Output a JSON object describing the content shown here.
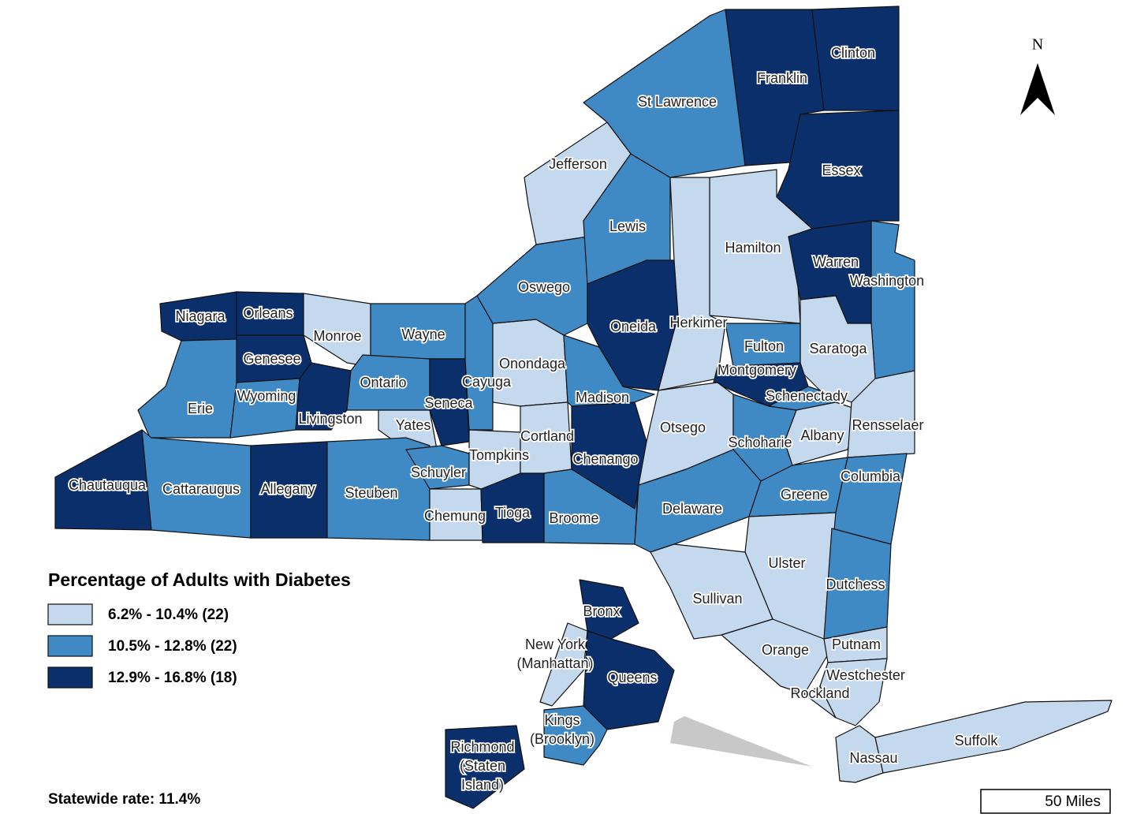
{
  "legend": {
    "title": "Percentage of Adults with Diabetes",
    "items": [
      {
        "label": "6.2% - 10.4% (22)",
        "color": "#c5d9ee"
      },
      {
        "label": "10.5% - 12.8% (22)",
        "color": "#3f8ac4"
      },
      {
        "label": "12.9% - 16.8% (18)",
        "color": "#0b2f6a"
      }
    ]
  },
  "footer": "Statewide rate: 11.4%",
  "north": "N",
  "scale_bar": "50 Miles",
  "counties": [
    {
      "label": "Niagara",
      "class": 2
    },
    {
      "label": "Orleans",
      "class": 2
    },
    {
      "label": "Monroe",
      "class": 0
    },
    {
      "label": "Wayne",
      "class": 1
    },
    {
      "label": "Genesee",
      "class": 2
    },
    {
      "label": "Erie",
      "class": 1
    },
    {
      "label": "Wyoming",
      "class": 1
    },
    {
      "label": "Livingston",
      "class": 2
    },
    {
      "label": "Ontario",
      "class": 1
    },
    {
      "label": "Seneca",
      "class": 2
    },
    {
      "label": "Cayuga",
      "class": 1
    },
    {
      "label": "Yates",
      "class": 0
    },
    {
      "label": "Chautauqua",
      "class": 2
    },
    {
      "label": "Cattaraugus",
      "class": 1
    },
    {
      "label": "Allegany",
      "class": 2
    },
    {
      "label": "Steuben",
      "class": 1
    },
    {
      "label": "Schuyler",
      "class": 1
    },
    {
      "label": "Chemung",
      "class": 0
    },
    {
      "label": "Tompkins",
      "class": 0
    },
    {
      "label": "Tioga",
      "class": 2
    },
    {
      "label": "Onondaga",
      "class": 0
    },
    {
      "label": "Cortland",
      "class": 0
    },
    {
      "label": "Broome",
      "class": 1
    },
    {
      "label": "Chenango",
      "class": 2
    },
    {
      "label": "Madison",
      "class": 1
    },
    {
      "label": "Oswego",
      "class": 1
    },
    {
      "label": "Jefferson",
      "class": 0
    },
    {
      "label": "Lewis",
      "class": 1
    },
    {
      "label": "Oneida",
      "class": 2
    },
    {
      "label": "St Lawrence",
      "class": 1
    },
    {
      "label": "Franklin",
      "class": 2
    },
    {
      "label": "Clinton",
      "class": 2
    },
    {
      "label": "Essex",
      "class": 2
    },
    {
      "label": "Hamilton",
      "class": 0
    },
    {
      "label": "Herkimer",
      "class": 0
    },
    {
      "label": "Warren",
      "class": 2
    },
    {
      "label": "Washington",
      "class": 1
    },
    {
      "label": "Saratoga",
      "class": 0
    },
    {
      "label": "Fulton",
      "class": 1
    },
    {
      "label": "Montgomery",
      "class": 2
    },
    {
      "label": "Schenectady",
      "class": 1
    },
    {
      "label": "Albany",
      "class": 0
    },
    {
      "label": "Rensselaer",
      "class": 0
    },
    {
      "label": "Otsego",
      "class": 0
    },
    {
      "label": "Schoharie",
      "class": 1
    },
    {
      "label": "Delaware",
      "class": 1
    },
    {
      "label": "Greene",
      "class": 1
    },
    {
      "label": "Columbia",
      "class": 1
    },
    {
      "label": "Ulster",
      "class": 0
    },
    {
      "label": "Sullivan",
      "class": 0
    },
    {
      "label": "Dutchess",
      "class": 1
    },
    {
      "label": "Orange",
      "class": 0
    },
    {
      "label": "Putnam",
      "class": 0
    },
    {
      "label": "Westchester",
      "class": 0
    },
    {
      "label": "Rockland",
      "class": 0
    },
    {
      "label": "Nassau",
      "class": 0
    },
    {
      "label": "Suffolk",
      "class": 0
    },
    {
      "label": "Bronx",
      "class": 2
    },
    {
      "label": [
        "New York",
        "(Manhattan)"
      ],
      "class": 0
    },
    {
      "label": "Queens",
      "class": 2
    },
    {
      "label": [
        "Kings",
        "(Brooklyn)"
      ],
      "class": 1
    },
    {
      "label": [
        "Richmond",
        "(Staten",
        "Island)"
      ],
      "class": 2
    }
  ]
}
